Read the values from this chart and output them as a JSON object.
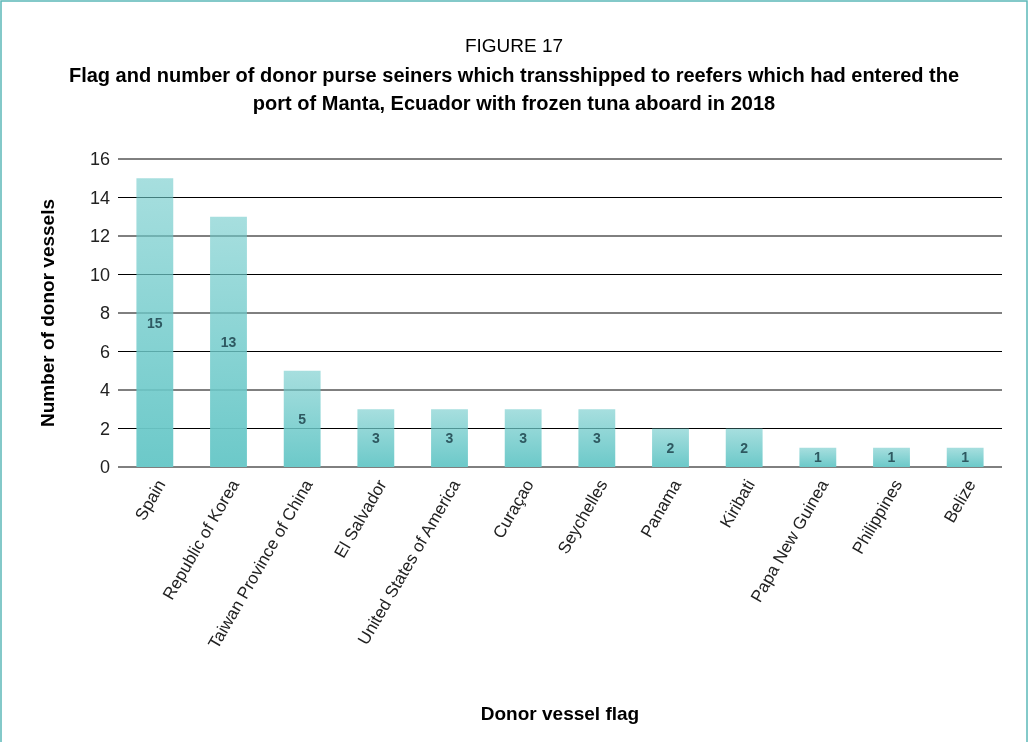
{
  "chart_data": {
    "type": "bar",
    "title": "FIGURE 17",
    "subtitle": "Flag and number of donor purse seiners which transshipped to reefers which had entered the port of Manta, Ecuador with frozen tuna aboard in 2018",
    "xlabel": "Donor vessel flag",
    "ylabel": "Number of donor vessels",
    "categories": [
      "Spain",
      "Republic of Korea",
      "Taiwan Province of China",
      "El Salvador",
      "United States of America",
      "Curaçao",
      "Seychelles",
      "Panama",
      "Kiribati",
      "Papa New Guinea",
      "Philippines",
      "Belize"
    ],
    "values": [
      15,
      13,
      5,
      3,
      3,
      3,
      3,
      2,
      2,
      1,
      1,
      1
    ],
    "color": "#6cc9c9",
    "ylim": [
      0,
      16
    ],
    "yticks": [
      0,
      2,
      4,
      6,
      8,
      10,
      12,
      14,
      16
    ],
    "grid": "y",
    "data_labels": true
  }
}
